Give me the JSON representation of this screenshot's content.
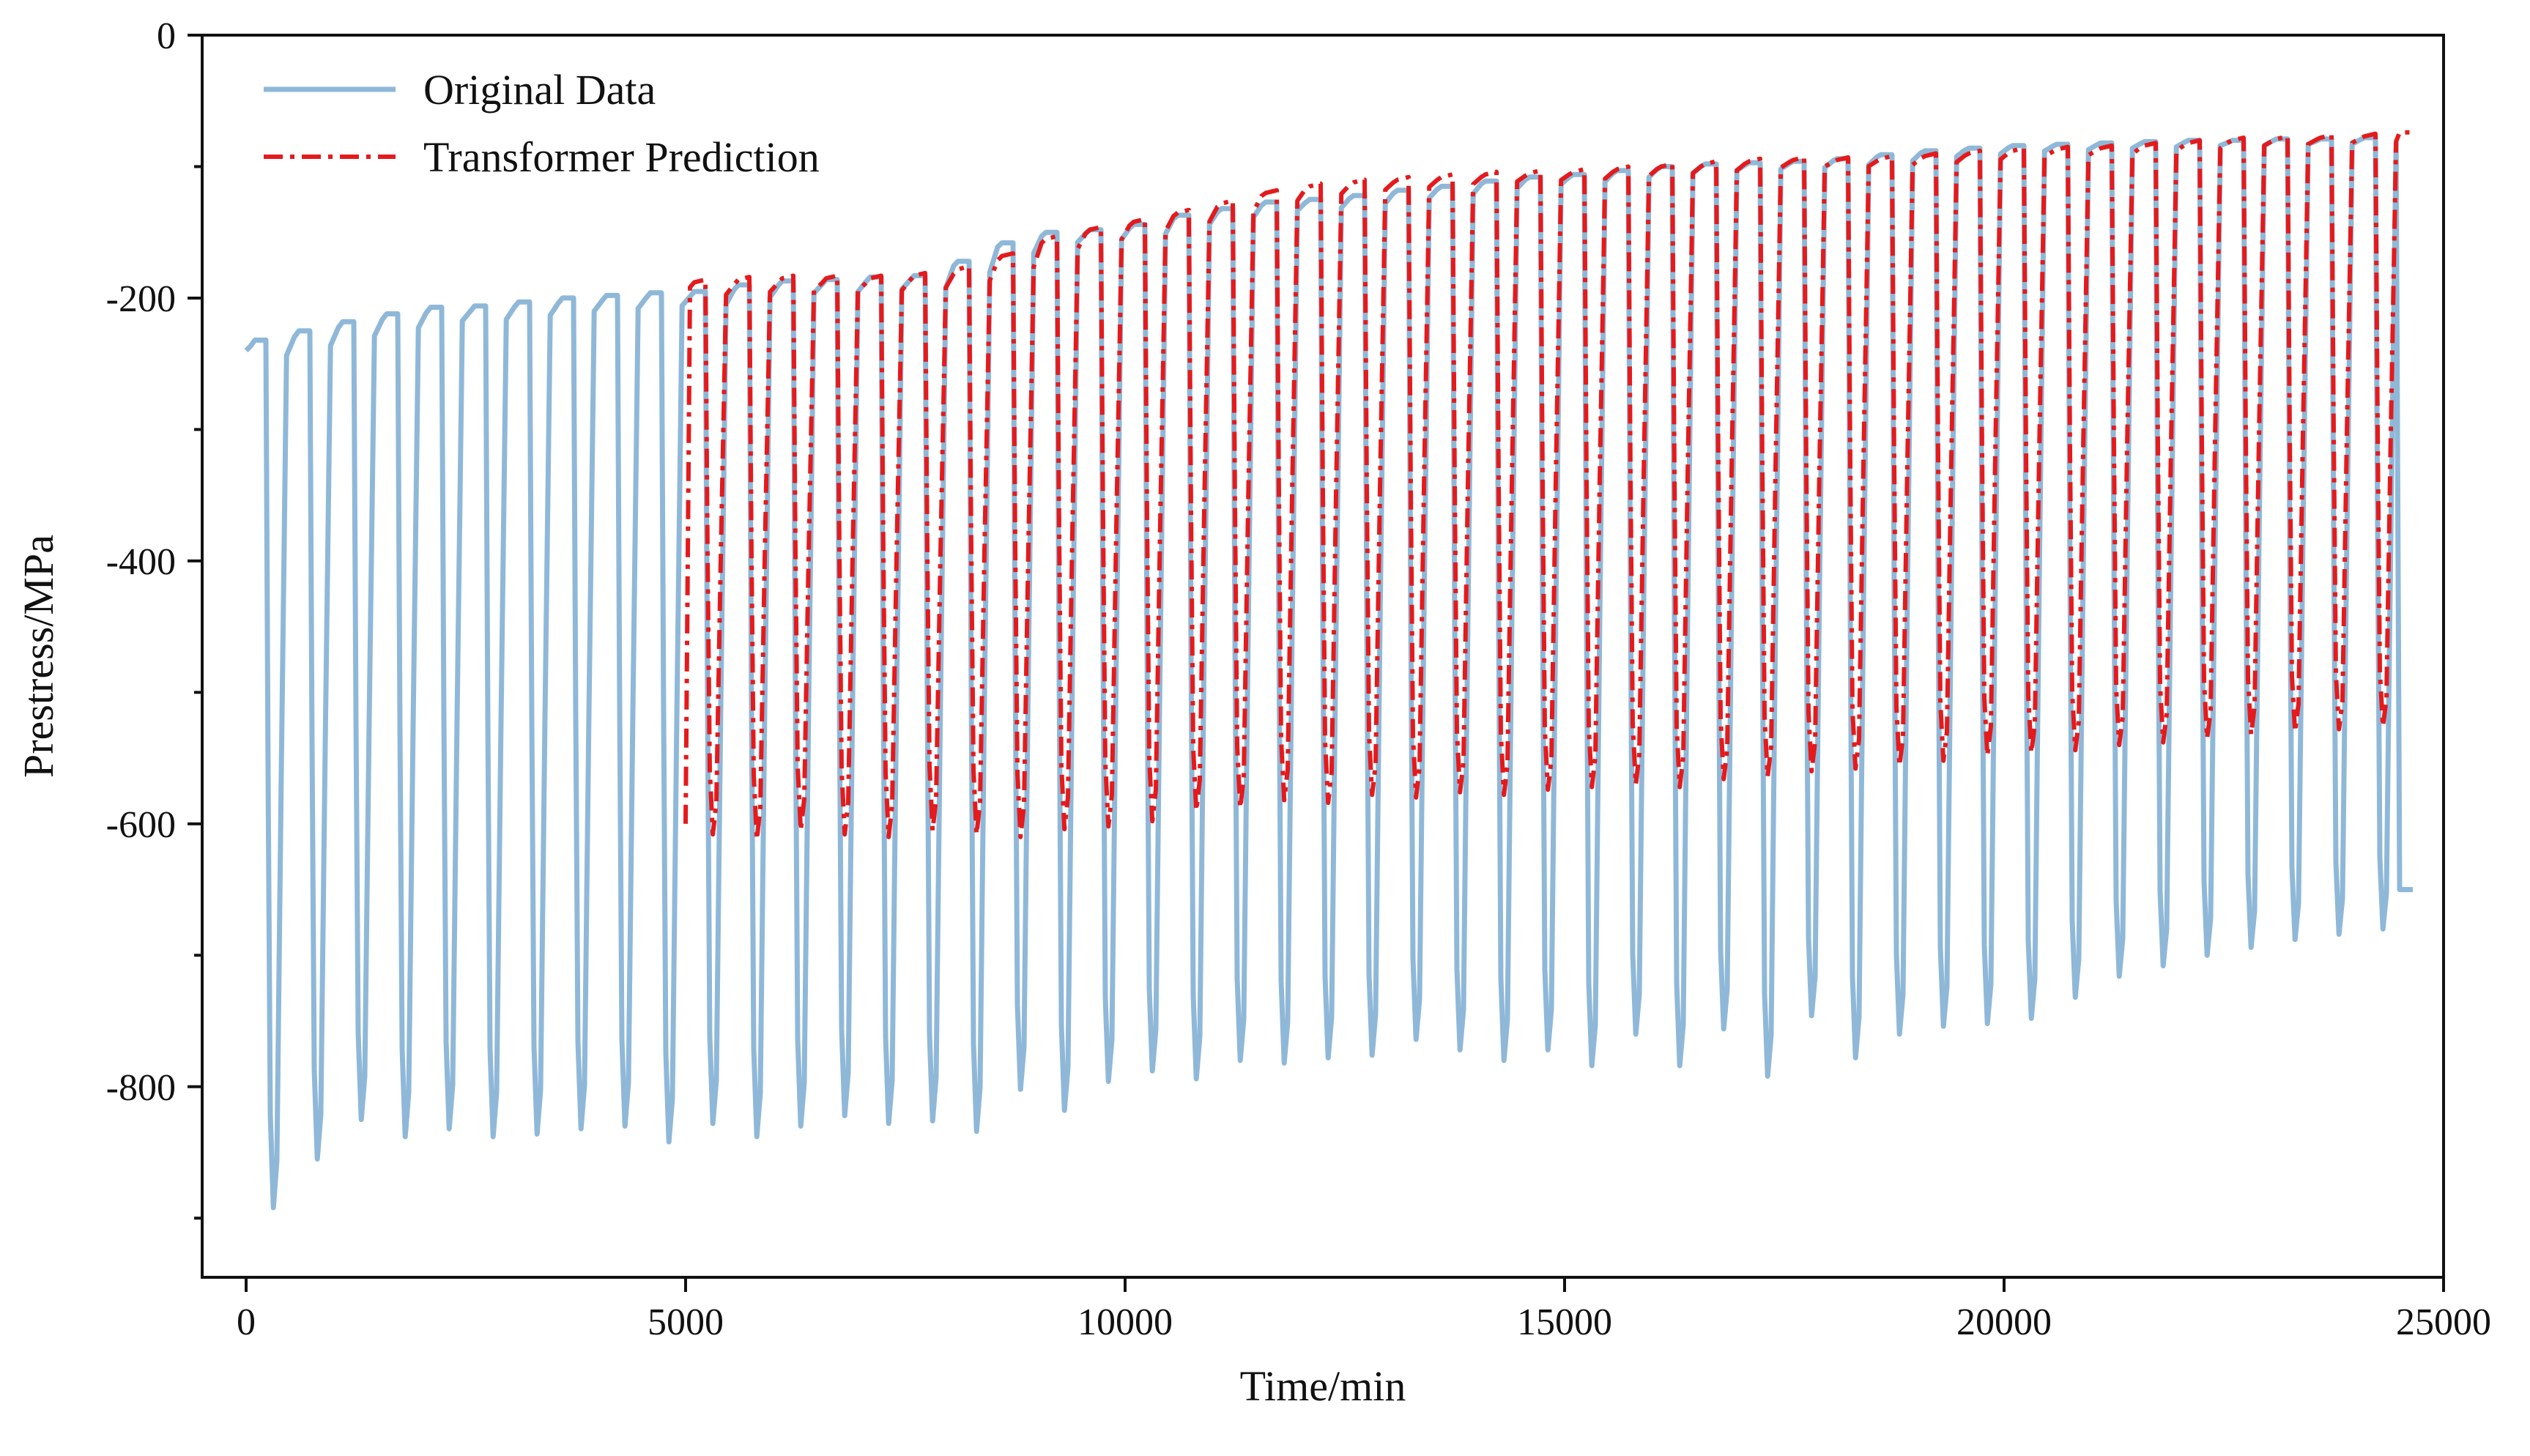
{
  "chart_data": {
    "type": "line",
    "title": "",
    "xlabel": "Time/min",
    "ylabel": "Prestress/MPa",
    "xlim": [
      -500,
      25000
    ],
    "ylim": [
      -945,
      0
    ],
    "x_ticks": [
      0,
      5000,
      10000,
      15000,
      20000,
      25000
    ],
    "x_tick_labels": [
      "0",
      "5000",
      "10000",
      "15000",
      "20000",
      "25000"
    ],
    "y_ticks": [
      0,
      -200,
      -400,
      -600,
      -800
    ],
    "y_tick_labels": [
      "0",
      "-200",
      "-400",
      "-600",
      "-800"
    ],
    "y_minor_ticks": [
      -100,
      -300,
      -500,
      -700,
      -900
    ],
    "legend": {
      "position": "top-left"
    },
    "series": [
      {
        "name": "Original Data",
        "color": "#8fb8d8",
        "style": "solid",
        "x_start": 0,
        "cycle_period": 500,
        "upper_values": [
          -232,
          -225,
          -218,
          -212,
          -207,
          -206,
          -203,
          -200,
          -198,
          -196,
          -195,
          -190,
          -187,
          -186,
          -184,
          -183,
          -172,
          -158,
          -150,
          -148,
          -144,
          -137,
          -132,
          -127,
          -125,
          -122,
          -118,
          -115,
          -111,
          -108,
          -106,
          -103,
          -100,
          -98,
          -97,
          -96,
          -94,
          -91,
          -88,
          -86,
          -84,
          -83,
          -82,
          -81,
          -80,
          -80,
          -79,
          -79,
          -78
        ],
        "lower_values": [
          -892,
          -855,
          -825,
          -838,
          -832,
          -838,
          -836,
          -832,
          -830,
          -842,
          -828,
          -838,
          -830,
          -822,
          -828,
          -826,
          -834,
          -802,
          -818,
          -796,
          -788,
          -794,
          -780,
          -782,
          -778,
          -776,
          -764,
          -772,
          -780,
          -772,
          -784,
          -760,
          -784,
          -756,
          -792,
          -746,
          -778,
          -760,
          -754,
          -752,
          -748,
          -732,
          -716,
          -708,
          -700,
          -694,
          -688,
          -684,
          -680
        ],
        "end_value": -650
      },
      {
        "name": "Transformer Prediction",
        "color": "#e41a1c",
        "style": "dash-dot",
        "x_start": 5000,
        "cycle_period": 500,
        "upper_values": [
          -188,
          -186,
          -185,
          -185,
          -185,
          -183,
          -178,
          -168,
          -155,
          -148,
          -142,
          -135,
          -128,
          -120,
          -115,
          -112,
          -110,
          -108,
          -106,
          -105,
          -104,
          -102,
          -100,
          -98,
          -96,
          -95,
          -95,
          -94,
          -92,
          -90,
          -88,
          -87,
          -86,
          -84,
          -82,
          -80,
          -79,
          -78,
          -77
        ],
        "lower_values": [
          -608,
          -612,
          -605,
          -608,
          -610,
          -605,
          -608,
          -610,
          -604,
          -602,
          -598,
          -590,
          -588,
          -582,
          -584,
          -578,
          -580,
          -576,
          -578,
          -574,
          -572,
          -570,
          -572,
          -566,
          -564,
          -560,
          -558,
          -556,
          -552,
          -548,
          -546,
          -544,
          -540,
          -538,
          -535,
          -532,
          -530,
          -528,
          -526
        ],
        "end_value": -74
      }
    ]
  }
}
